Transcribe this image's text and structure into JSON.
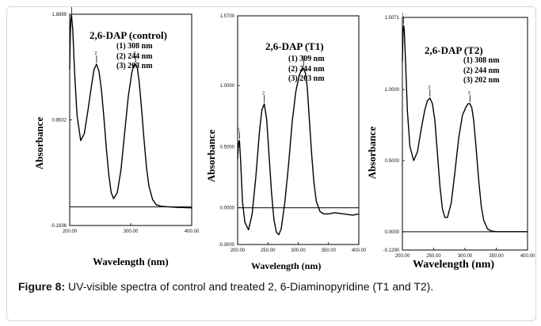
{
  "caption": {
    "label": "Figure 8:",
    "text": "UV-visible spectra of control and treated 2, 6-Diaminopyridine (T1 and T2)."
  },
  "chart_data": [
    {
      "type": "line",
      "title": "2,6-DAP (control)",
      "peaks": [
        "(1) 308 nm",
        "(2) 244 nm",
        "(3) 203 nm"
      ],
      "peak_markers": [
        "3",
        "2",
        "1"
      ],
      "xlabel": "Wavelength (nm)",
      "ylabel": "Absorbance",
      "xlim": [
        200,
        400
      ],
      "ylim": [
        -0.1836,
        1.8899
      ],
      "x_ticks": [
        "200.00",
        "300.00",
        "400.00"
      ],
      "x_tick_values": [
        200,
        300,
        400
      ],
      "y_ticks": [
        "1.8899",
        "0.8532",
        "-0.1836"
      ],
      "y_tick_values": [
        1.8899,
        0.8532,
        -0.1836
      ],
      "baseline": 0,
      "series": [
        {
          "x": [
            200,
            201,
            202,
            203,
            205,
            208,
            212,
            218,
            224,
            230,
            236,
            240,
            244,
            248,
            252,
            256,
            260,
            264,
            268,
            272,
            278,
            284,
            290,
            296,
            302,
            305,
            308,
            311,
            314,
            318,
            322,
            326,
            330,
            336,
            342,
            350,
            360,
            375,
            390,
            400
          ],
          "y": [
            1.35,
            1.7,
            1.84,
            1.88,
            1.74,
            1.32,
            0.9,
            0.65,
            0.72,
            0.95,
            1.2,
            1.35,
            1.4,
            1.33,
            1.15,
            0.88,
            0.58,
            0.32,
            0.14,
            0.08,
            0.14,
            0.36,
            0.72,
            1.08,
            1.32,
            1.39,
            1.4,
            1.36,
            1.22,
            0.95,
            0.65,
            0.38,
            0.2,
            0.07,
            0.02,
            0.005,
            0.0,
            -0.005,
            -0.008,
            -0.01
          ]
        }
      ]
    },
    {
      "type": "line",
      "title": "2,6-DAP (T1)",
      "peaks": [
        "(1) 309 nm",
        "(2) 244 nm",
        "(3) 203 nm"
      ],
      "peak_markers": [
        "3",
        "2",
        "1"
      ],
      "xlabel": "Wavelength (nm)",
      "ylabel": "Absorbance",
      "xlim": [
        200,
        400
      ],
      "ylim": [
        -0.3,
        1.57
      ],
      "x_ticks": [
        "200.00",
        "250.00",
        "300.00",
        "350.00",
        "400.00"
      ],
      "x_tick_values": [
        200,
        250,
        300,
        350,
        400
      ],
      "y_ticks": [
        "1.5700",
        "1.0000",
        "0.5000",
        "0.0000",
        "-0.3000"
      ],
      "y_tick_values": [
        1.57,
        1.0,
        0.5,
        0.0,
        -0.3
      ],
      "baseline": 0,
      "series": [
        {
          "x": [
            200,
            201,
            202,
            203,
            205,
            208,
            212,
            218,
            224,
            230,
            236,
            240,
            244,
            248,
            252,
            256,
            260,
            264,
            268,
            272,
            278,
            284,
            290,
            296,
            302,
            306,
            309,
            312,
            315,
            318,
            322,
            326,
            330,
            336,
            342,
            350,
            360,
            375,
            390,
            400
          ],
          "y": [
            0.4,
            0.5,
            0.54,
            0.55,
            0.38,
            0.05,
            -0.12,
            -0.18,
            -0.05,
            0.25,
            0.62,
            0.8,
            0.85,
            0.72,
            0.42,
            0.12,
            -0.1,
            -0.2,
            -0.22,
            -0.17,
            0.05,
            0.35,
            0.7,
            0.95,
            1.09,
            1.13,
            1.14,
            1.1,
            0.98,
            0.75,
            0.45,
            0.2,
            0.05,
            -0.03,
            -0.05,
            -0.05,
            -0.04,
            -0.05,
            -0.06,
            -0.05
          ]
        }
      ]
    },
    {
      "type": "line",
      "title": "2,6-DAP (T2)",
      "peaks": [
        "(1) 308 nm",
        "(2) 244 nm",
        "(3) 202 nm"
      ],
      "peak_markers": [
        "3",
        "2",
        "1"
      ],
      "xlabel": "Wavelength (nm)",
      "ylabel": "Absorbance",
      "xlim": [
        200,
        400
      ],
      "ylim": [
        -0.129,
        1.5071
      ],
      "x_ticks": [
        "200.00",
        "250.00",
        "300.00",
        "350.00",
        "400.00"
      ],
      "x_tick_values": [
        200,
        250,
        300,
        350,
        400
      ],
      "y_ticks": [
        "1.5071",
        "1.0000",
        "0.5000",
        "0.0000",
        "-0.1290"
      ],
      "y_tick_values": [
        1.5071,
        1.0,
        0.5,
        0.0,
        -0.129
      ],
      "baseline": 0,
      "series": [
        {
          "x": [
            200,
            201,
            202,
            203,
            205,
            208,
            212,
            218,
            224,
            230,
            236,
            240,
            244,
            248,
            252,
            256,
            260,
            264,
            268,
            272,
            278,
            284,
            290,
            296,
            302,
            305,
            308,
            311,
            314,
            318,
            322,
            326,
            330,
            336,
            342,
            350,
            360,
            375,
            390,
            400
          ],
          "y": [
            1.2,
            1.4,
            1.45,
            1.42,
            1.2,
            0.85,
            0.6,
            0.5,
            0.56,
            0.72,
            0.86,
            0.92,
            0.94,
            0.9,
            0.78,
            0.55,
            0.32,
            0.16,
            0.1,
            0.1,
            0.2,
            0.42,
            0.66,
            0.82,
            0.88,
            0.9,
            0.9,
            0.87,
            0.78,
            0.58,
            0.36,
            0.18,
            0.08,
            0.02,
            0.005,
            0.0,
            0.0,
            0.0,
            0.0,
            0.0
          ]
        }
      ]
    }
  ]
}
